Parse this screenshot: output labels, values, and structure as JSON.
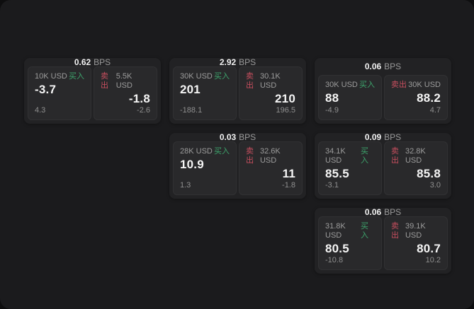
{
  "labels": {
    "bps": "BPS",
    "buy": "买入",
    "sell": "卖出"
  },
  "colors": {
    "page_bg": "#0e0e0f",
    "canvas_bg": "#1b1b1d",
    "card_bg": "#222224",
    "panel_bg": "#29292b",
    "buy_accent": "#3da46c",
    "sell_accent": "#c94f5f"
  },
  "cards": [
    {
      "bps": "0.62",
      "buy": {
        "size": "10K USD",
        "value": "-3.7",
        "change": "4.3"
      },
      "sell": {
        "size": "5.5K USD",
        "value": "-1.8",
        "change": "-2.6"
      }
    },
    {
      "bps": "2.92",
      "buy": {
        "size": "30K USD",
        "value": "201",
        "change": "-188.1"
      },
      "sell": {
        "size": "30.1K USD",
        "value": "210",
        "change": "196.5"
      }
    },
    {
      "bps": "0.06",
      "buy": {
        "size": "30K USD",
        "value": "88",
        "change": "-4.9"
      },
      "sell": {
        "size": "30K USD",
        "value": "88.2",
        "change": "4.7"
      }
    },
    {
      "bps": "0.03",
      "buy": {
        "size": "28K USD",
        "value": "10.9",
        "change": "1.3"
      },
      "sell": {
        "size": "32.6K USD",
        "value": "11",
        "change": "-1.8"
      }
    },
    {
      "bps": "0.09",
      "buy": {
        "size": "34.1K USD",
        "value": "85.5",
        "change": "-3.1"
      },
      "sell": {
        "size": "32.8K USD",
        "value": "85.8",
        "change": "3.0"
      }
    },
    {
      "bps": "0.06",
      "buy": {
        "size": "31.8K USD",
        "value": "80.5",
        "change": "-10.8"
      },
      "sell": {
        "size": "39.1K USD",
        "value": "80.7",
        "change": "10.2"
      }
    }
  ]
}
